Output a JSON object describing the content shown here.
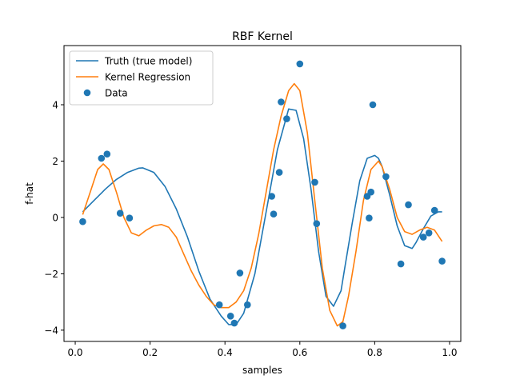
{
  "chart_data": {
    "type": "line",
    "title": "RBF Kernel",
    "xlabel": "samples",
    "ylabel": "f-hat",
    "xlim": [
      -0.03,
      1.03
    ],
    "ylim": [
      -4.4,
      6.1
    ],
    "xticks": [
      0.0,
      0.2,
      0.4,
      0.6,
      0.8,
      1.0
    ],
    "xtick_labels": [
      "0.0",
      "0.2",
      "0.4",
      "0.6",
      "0.8",
      "1.0"
    ],
    "yticks": [
      -4,
      -2,
      0,
      2,
      4
    ],
    "ytick_labels": [
      "−4",
      "−2",
      "0",
      "2",
      "4"
    ],
    "grid": false,
    "legend_placement": "upper-left",
    "series": [
      {
        "name": "Truth (true model)",
        "kind": "line",
        "color": "#1f77b4",
        "x": [
          0.02,
          0.05,
          0.08,
          0.11,
          0.14,
          0.17,
          0.18,
          0.21,
          0.24,
          0.27,
          0.3,
          0.33,
          0.36,
          0.39,
          0.41,
          0.43,
          0.45,
          0.48,
          0.51,
          0.54,
          0.57,
          0.59,
          0.61,
          0.63,
          0.65,
          0.67,
          0.69,
          0.71,
          0.72,
          0.74,
          0.76,
          0.78,
          0.8,
          0.81,
          0.82,
          0.84,
          0.86,
          0.88,
          0.9,
          0.91,
          0.93,
          0.95,
          0.97,
          0.98
        ],
        "y": [
          0.2,
          0.6,
          1.0,
          1.35,
          1.6,
          1.75,
          1.76,
          1.6,
          1.1,
          0.3,
          -0.7,
          -1.9,
          -2.9,
          -3.5,
          -3.8,
          -3.8,
          -3.4,
          -2.0,
          0.2,
          2.4,
          3.85,
          3.8,
          2.8,
          1.0,
          -1.2,
          -2.8,
          -3.15,
          -2.6,
          -1.8,
          -0.2,
          1.3,
          2.1,
          2.2,
          2.1,
          1.8,
          0.8,
          -0.3,
          -1.0,
          -1.1,
          -0.9,
          -0.4,
          0.05,
          0.2,
          0.2
        ]
      },
      {
        "name": "Kernel Regression",
        "kind": "line",
        "color": "#ff7f0e",
        "x": [
          0.02,
          0.04,
          0.06,
          0.075,
          0.09,
          0.11,
          0.13,
          0.15,
          0.17,
          0.19,
          0.21,
          0.23,
          0.25,
          0.27,
          0.29,
          0.31,
          0.33,
          0.35,
          0.37,
          0.39,
          0.41,
          0.43,
          0.45,
          0.47,
          0.49,
          0.51,
          0.53,
          0.55,
          0.57,
          0.585,
          0.6,
          0.62,
          0.64,
          0.66,
          0.68,
          0.7,
          0.715,
          0.73,
          0.75,
          0.77,
          0.79,
          0.81,
          0.82,
          0.84,
          0.86,
          0.88,
          0.9,
          0.92,
          0.94,
          0.96,
          0.98
        ],
        "y": [
          0.1,
          0.9,
          1.7,
          1.9,
          1.7,
          0.9,
          0.0,
          -0.55,
          -0.65,
          -0.45,
          -0.3,
          -0.25,
          -0.35,
          -0.7,
          -1.3,
          -1.9,
          -2.4,
          -2.8,
          -3.1,
          -3.2,
          -3.2,
          -3.0,
          -2.6,
          -1.8,
          -0.6,
          0.9,
          2.4,
          3.6,
          4.5,
          4.75,
          4.5,
          3.0,
          0.6,
          -1.8,
          -3.3,
          -3.85,
          -3.7,
          -2.8,
          -1.2,
          0.6,
          1.7,
          2.0,
          1.8,
          1.0,
          0.0,
          -0.5,
          -0.6,
          -0.45,
          -0.35,
          -0.45,
          -0.85
        ]
      },
      {
        "name": "Data",
        "kind": "scatter",
        "color": "#1f77b4",
        "x": [
          0.02,
          0.07,
          0.085,
          0.12,
          0.145,
          0.385,
          0.415,
          0.425,
          0.44,
          0.46,
          0.525,
          0.53,
          0.545,
          0.55,
          0.565,
          0.6,
          0.64,
          0.645,
          0.715,
          0.78,
          0.785,
          0.79,
          0.795,
          0.83,
          0.87,
          0.89,
          0.93,
          0.945,
          0.96,
          0.98
        ],
        "y": [
          -0.15,
          2.1,
          2.25,
          0.15,
          -0.02,
          -3.1,
          -3.5,
          -3.75,
          -1.97,
          -3.1,
          0.75,
          0.12,
          1.6,
          4.1,
          3.5,
          5.45,
          1.25,
          -0.22,
          -3.85,
          0.75,
          -0.02,
          0.9,
          4.0,
          1.45,
          -1.65,
          0.45,
          -0.7,
          -0.55,
          0.25,
          -1.55
        ]
      }
    ]
  }
}
